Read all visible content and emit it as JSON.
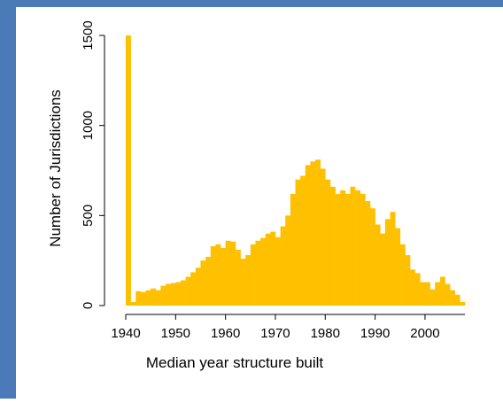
{
  "chart_data": {
    "type": "histogram",
    "x_label": "Median year structure built",
    "y_label": "Number of Jurisdictions",
    "color": "#ffc000",
    "bins": [
      1940,
      1941,
      1942,
      1943,
      1944,
      1945,
      1946,
      1947,
      1948,
      1949,
      1950,
      1951,
      1952,
      1953,
      1954,
      1955,
      1956,
      1957,
      1958,
      1959,
      1960,
      1961,
      1962,
      1963,
      1964,
      1965,
      1966,
      1967,
      1968,
      1969,
      1970,
      1971,
      1972,
      1973,
      1974,
      1975,
      1976,
      1977,
      1978,
      1979,
      1980,
      1981,
      1982,
      1983,
      1984,
      1985,
      1986,
      1987,
      1988,
      1989,
      1990,
      1991,
      1992,
      1993,
      1994,
      1995,
      1996,
      1997,
      1998,
      1999,
      2000,
      2001,
      2002,
      2003,
      2004,
      2005,
      2006,
      2007,
      2008
    ],
    "values": [
      1500,
      20,
      80,
      75,
      85,
      95,
      85,
      110,
      120,
      125,
      130,
      140,
      160,
      185,
      210,
      250,
      270,
      330,
      340,
      320,
      360,
      355,
      310,
      260,
      280,
      340,
      360,
      375,
      400,
      410,
      380,
      440,
      500,
      620,
      700,
      720,
      780,
      800,
      810,
      760,
      700,
      660,
      620,
      640,
      620,
      660,
      640,
      620,
      580,
      540,
      450,
      400,
      480,
      520,
      430,
      340,
      280,
      200,
      180,
      130,
      130,
      90,
      130,
      160,
      120,
      85,
      60,
      20
    ],
    "xlim": [
      1940,
      2008
    ],
    "xticks": [
      1940,
      1950,
      1960,
      1970,
      1980,
      1990,
      2000
    ],
    "ylim": [
      0,
      1500
    ],
    "yticks": [
      0,
      500,
      1000,
      1500
    ]
  }
}
